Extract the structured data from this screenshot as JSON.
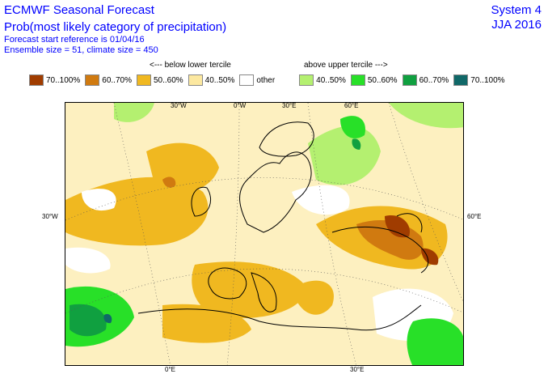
{
  "header": {
    "title": "ECMWF Seasonal Forecast",
    "subtitle": "Prob(most likely category of precipitation)",
    "start_ref": "Forecast start reference is 01/04/16",
    "ensemble": "Ensemble size = 51, climate size = 450",
    "system": "System 4",
    "season": "JJA 2016"
  },
  "legend": {
    "below_label": "<--- below lower tercile",
    "above_label": "above upper tercile --->",
    "items": [
      {
        "label": "70..100%",
        "color": "#a03c00"
      },
      {
        "label": "60..70%",
        "color": "#d07a10"
      },
      {
        "label": "50..60%",
        "color": "#f0b820"
      },
      {
        "label": "40..50%",
        "color": "#fce8a0"
      },
      {
        "label": "other",
        "color": "#ffffff"
      },
      {
        "label": "40..50%",
        "color": "#b4f070"
      },
      {
        "label": "50..60%",
        "color": "#28e028"
      },
      {
        "label": "60..70%",
        "color": "#10a040"
      },
      {
        "label": "70..100%",
        "color": "#106868"
      }
    ]
  },
  "map": {
    "lon_labels_top": [
      "30°W",
      "0°W",
      "30°E",
      "60°E"
    ],
    "lon_labels_bottom": [
      "0°E",
      "30°E"
    ],
    "lat_label_left": "30°W",
    "lat_label_right": "60°E"
  }
}
